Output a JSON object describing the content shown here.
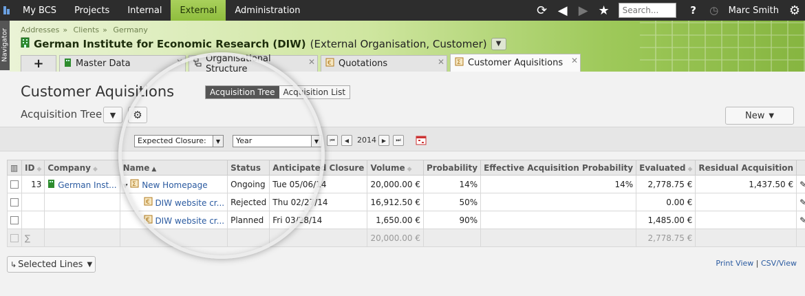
{
  "topnav": {
    "items": [
      {
        "label": "My BCS"
      },
      {
        "label": "Projects"
      },
      {
        "label": "Internal"
      },
      {
        "label": "External"
      },
      {
        "label": "Administration"
      }
    ],
    "active": "External",
    "search_placeholder": "Search...",
    "user": "Marc Smith"
  },
  "navigator": {
    "label": "Navigator"
  },
  "header": {
    "breadcrumb": [
      "Addresses",
      "Clients",
      "Germany"
    ],
    "org_name": "German Institute for Economic Research (DIW)",
    "org_sub": "(External Organisation, Customer)"
  },
  "tabs": [
    {
      "label": "Master Data"
    },
    {
      "label": "Organisational Structure"
    },
    {
      "label": "Quotations"
    },
    {
      "label": "Customer Aquisitions"
    }
  ],
  "page": {
    "title": "Customer Aquisitions",
    "view_toggle": [
      "Acquisition Tree",
      "Acquisition List"
    ],
    "subtitle": "Acquisition Tree",
    "new_button": "New"
  },
  "filter": {
    "field": "Expected Closure:",
    "period": "Year",
    "year": "2014"
  },
  "table": {
    "columns": [
      "ID",
      "Company",
      "Name",
      "Status",
      "Anticipated Closure",
      "Volume",
      "Probability",
      "Effective Acquisition Probability",
      "Evaluated",
      "Residual Acquisition"
    ],
    "rows": [
      {
        "id": "13",
        "company": "German Inst...",
        "name": "New Homepage",
        "status": "Ongoing",
        "closure": "Tue 05/06/14",
        "volume": "20,000.00 €",
        "probability": "14%",
        "effective": "14%",
        "evaluated": "2,778.75 €",
        "residual": "1,437.50 €"
      },
      {
        "id": "",
        "company": "",
        "name": "DIW website cr...",
        "status": "Rejected",
        "closure": "Thu 02/27/14",
        "volume": "16,912.50 €",
        "probability": "50%",
        "effective": "",
        "evaluated": "0.00 €",
        "residual": ""
      },
      {
        "id": "",
        "company": "",
        "name": "DIW website cr...",
        "status": "Planned",
        "closure": "Fri 03/28/14",
        "volume": "1,650.00 €",
        "probability": "90%",
        "effective": "",
        "evaluated": "1,485.00 €",
        "residual": ""
      }
    ],
    "sum": {
      "symbol": "∑",
      "volume": "20,000.00 €",
      "evaluated": "2,778.75 €"
    }
  },
  "footer": {
    "selected_lines": "Selected Lines",
    "print_view": "Print View",
    "csv_view": "CSV/View",
    "separator": "|"
  },
  "colors": {
    "accent": "#8fbd3e",
    "topbar": "#2d2d2d",
    "link": "#2a5aa0"
  }
}
